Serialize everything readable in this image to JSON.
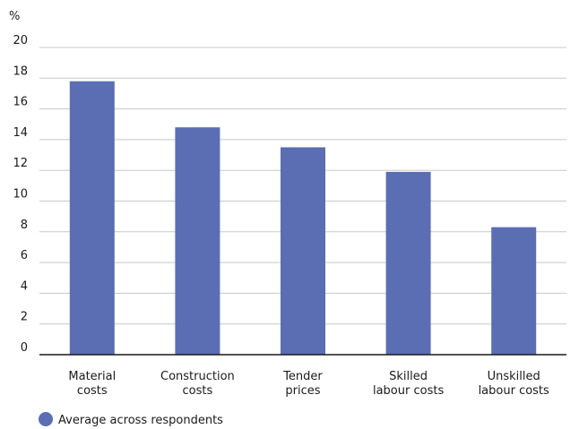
{
  "chart_data": {
    "type": "bar",
    "unit_label": "%",
    "categories": [
      [
        "Material",
        "costs"
      ],
      [
        "Construction",
        "costs"
      ],
      [
        "Tender",
        "prices"
      ],
      [
        "Skilled",
        "labour costs"
      ],
      [
        "Unskilled",
        "labour costs"
      ]
    ],
    "series": [
      {
        "name": "Average across respondents",
        "values": [
          17.8,
          14.8,
          13.5,
          11.9,
          8.3
        ],
        "color": "#5b6db3"
      }
    ],
    "ylim": [
      0,
      20
    ],
    "yticks": [
      0,
      2,
      4,
      6,
      8,
      10,
      12,
      14,
      16,
      18,
      20
    ],
    "grid": true,
    "legend_position": "bottom-left",
    "colors": {
      "gridline": "#c8c8c8",
      "axis": "#1a1a1a"
    }
  }
}
